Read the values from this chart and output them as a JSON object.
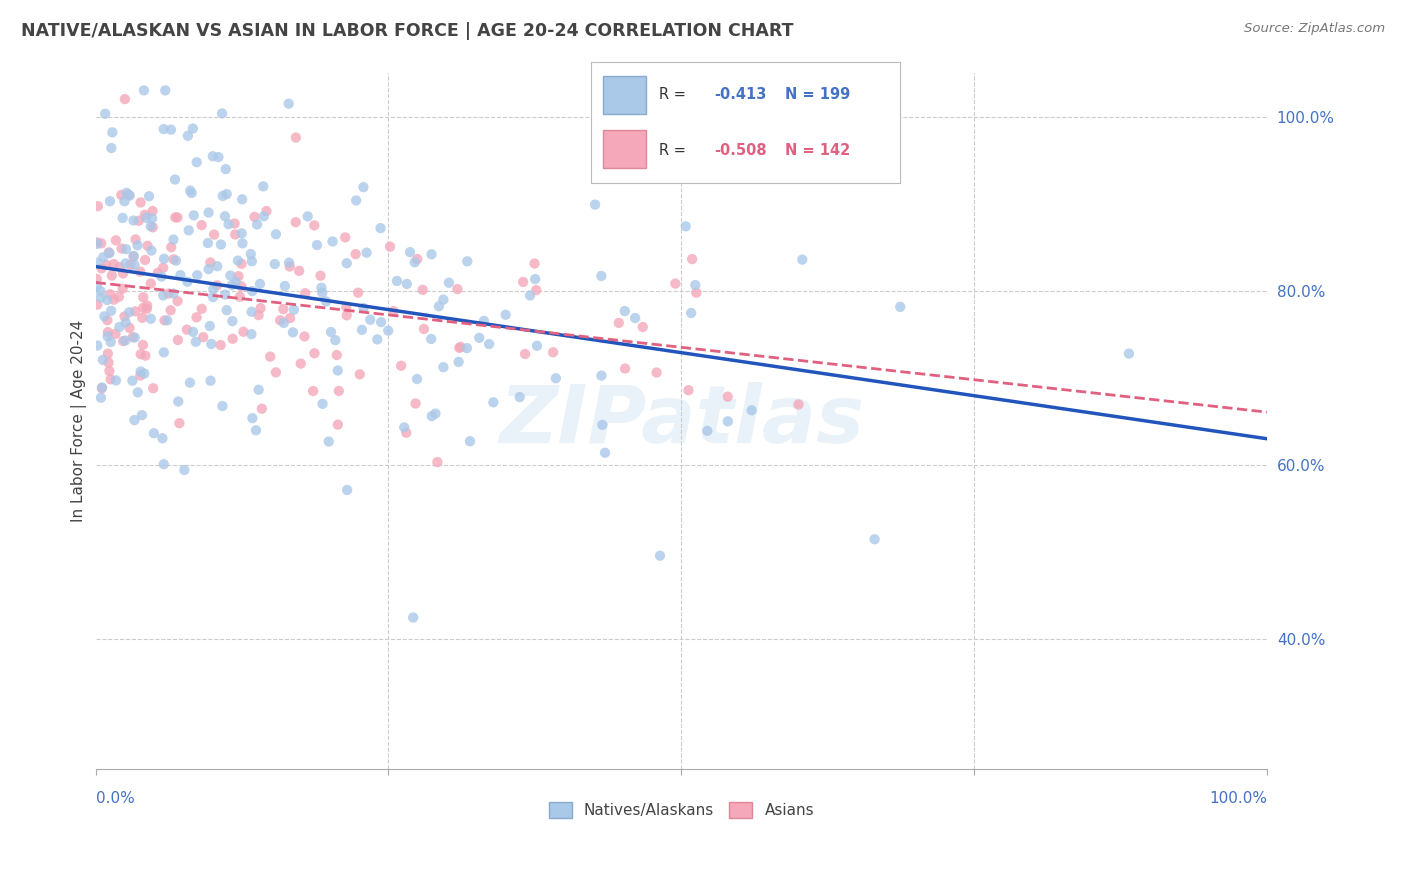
{
  "title": "NATIVE/ALASKAN VS ASIAN IN LABOR FORCE | AGE 20-24 CORRELATION CHART",
  "source": "Source: ZipAtlas.com",
  "ylabel": "In Labor Force | Age 20-24",
  "xlim": [
    0.0,
    1.0
  ],
  "ylim": [
    0.25,
    1.05
  ],
  "yticks": [
    0.4,
    0.6,
    0.8,
    1.0
  ],
  "ytick_labels": [
    "40.0%",
    "60.0%",
    "80.0%",
    "100.0%"
  ],
  "native_color": "#aac8e8",
  "asian_color": "#f4a8ba",
  "native_line_color": "#2255bb",
  "asian_line_color": "#e06080",
  "native_R": "-0.413",
  "native_N": "199",
  "asian_R": "-0.508",
  "asian_N": "142",
  "background_color": "#ffffff",
  "grid_color": "#cccccc",
  "title_color": "#444444",
  "axis_label_color": "#4472c4",
  "watermark": "ZIPatlas",
  "native_seed": 7,
  "asian_seed": 13,
  "native_intercept": 0.838,
  "native_slope": -0.225,
  "asian_intercept": 0.825,
  "asian_slope": -0.165
}
